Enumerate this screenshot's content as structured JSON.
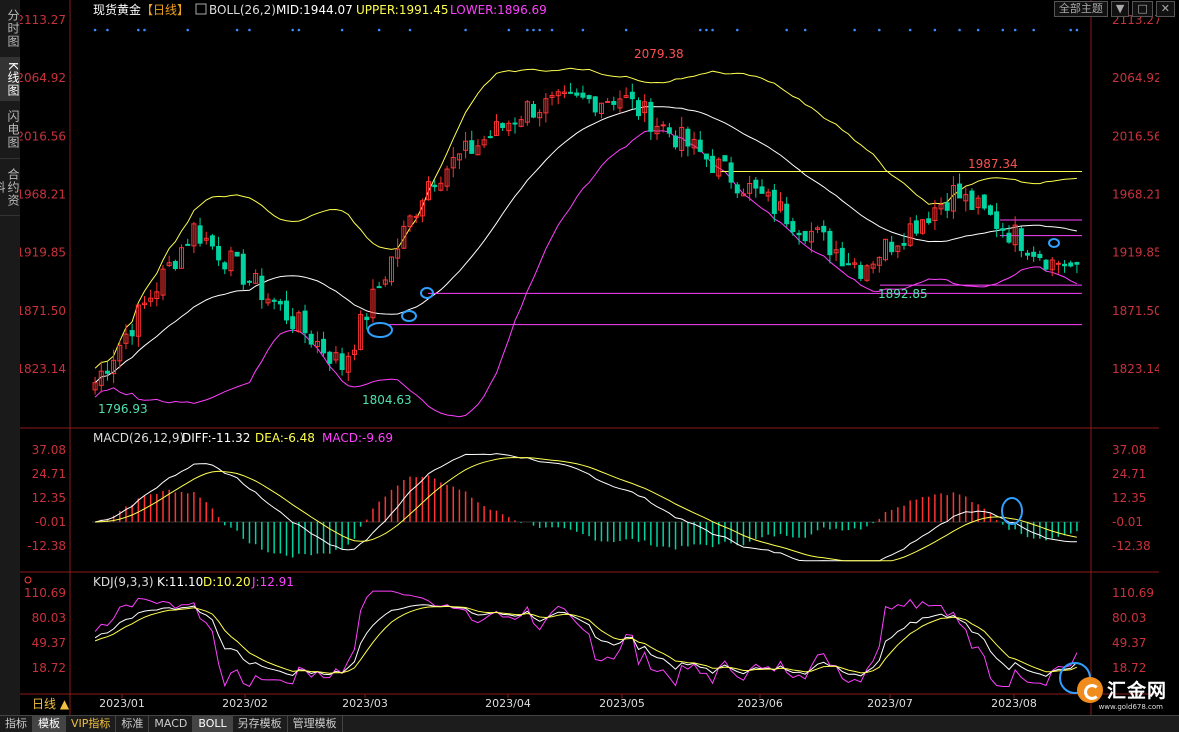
{
  "sidebar": {
    "tabs": [
      "分时图",
      "K线图",
      "闪电图",
      "合约资料"
    ]
  },
  "header": {
    "instrument": "现货黄金",
    "period_tag": "【日线】",
    "boll_label": "BOLL(26,2)",
    "mid": "MID:1944.07",
    "upper": "UPPER:1991.45",
    "lower": "LOWER:1896.69"
  },
  "topright": {
    "subject_select": "全部主题",
    "buttons": [
      "▼",
      "□",
      "✕"
    ]
  },
  "macd_header": {
    "label": "MACD(26,12,9)",
    "diff": "DIFF:-11.32",
    "dea": "DEA:-6.48",
    "macd": "MACD:-9.69"
  },
  "kdj_header": {
    "label": "KDJ(9,3,3)",
    "k": "K:11.10",
    "d": "D:10.20",
    "j": "J:12.91"
  },
  "period_button": "日线 ▲",
  "bottom_tabs": [
    "指标",
    "模板",
    "VIP指标",
    "标准",
    "MACD",
    "BOLL",
    "另存模板",
    "管理模板"
  ],
  "logo": {
    "text": "汇金网",
    "url": "www.gold678.com"
  },
  "colors": {
    "up": "#ff3232",
    "down": "#00d2a0",
    "mid": "#ffffff",
    "upper": "#ffff50",
    "lower": "#ff40ff",
    "axis": "#c8323c",
    "macd_dea": "#ffff50",
    "kdj_j": "#ff40ff"
  },
  "chart_data": [
    {
      "type": "candlestick",
      "title": "现货黄金 日线",
      "x_ticks": [
        "2023/01",
        "2023/02",
        "2023/03",
        "2023/04",
        "2023/05",
        "2023/06",
        "2023/07",
        "2023/08"
      ],
      "y_ticks": [
        "2113.27",
        "2064.92",
        "2016.56",
        "1968.21",
        "1919.85",
        "1871.50",
        "1823.14"
      ],
      "ylim": [
        1786,
        2113.27
      ],
      "annotations": [
        "2079.38",
        "1796.93",
        "1804.63",
        "1987.34",
        "1892.85"
      ],
      "bollinger": {
        "mid": 1944.07,
        "upper": 1991.45,
        "lower": 1896.69
      },
      "key_points": [
        {
          "date": "2023-01-03",
          "close": 1812
        },
        {
          "date": "2023-01-25",
          "close": 1940
        },
        {
          "date": "2023-02-28",
          "close": 1826
        },
        {
          "date": "2023-03-20",
          "close": 1980
        },
        {
          "date": "2023-04-13",
          "close": 2040
        },
        {
          "date": "2023-05-04",
          "close": 2050
        },
        {
          "date": "2023-06-01",
          "close": 1980
        },
        {
          "date": "2023-06-29",
          "close": 1908
        },
        {
          "date": "2023-07-20",
          "close": 1970
        },
        {
          "date": "2023-08-11",
          "close": 1913
        }
      ],
      "horizontal_lines": [
        1987.34,
        1947,
        1934,
        1892.85,
        1886,
        1860
      ]
    },
    {
      "type": "macd",
      "y_ticks": [
        "37.08",
        "24.71",
        "12.35",
        "-0.01",
        "-12.38"
      ],
      "ylim": [
        -22,
        40
      ],
      "diff": -11.32,
      "dea": -6.48,
      "macd": -9.69
    },
    {
      "type": "kdj",
      "y_ticks": [
        "110.69",
        "80.03",
        "49.37",
        "18.72"
      ],
      "ylim": [
        -5,
        115
      ],
      "k": 11.1,
      "d": 10.2,
      "j": 12.91
    }
  ]
}
